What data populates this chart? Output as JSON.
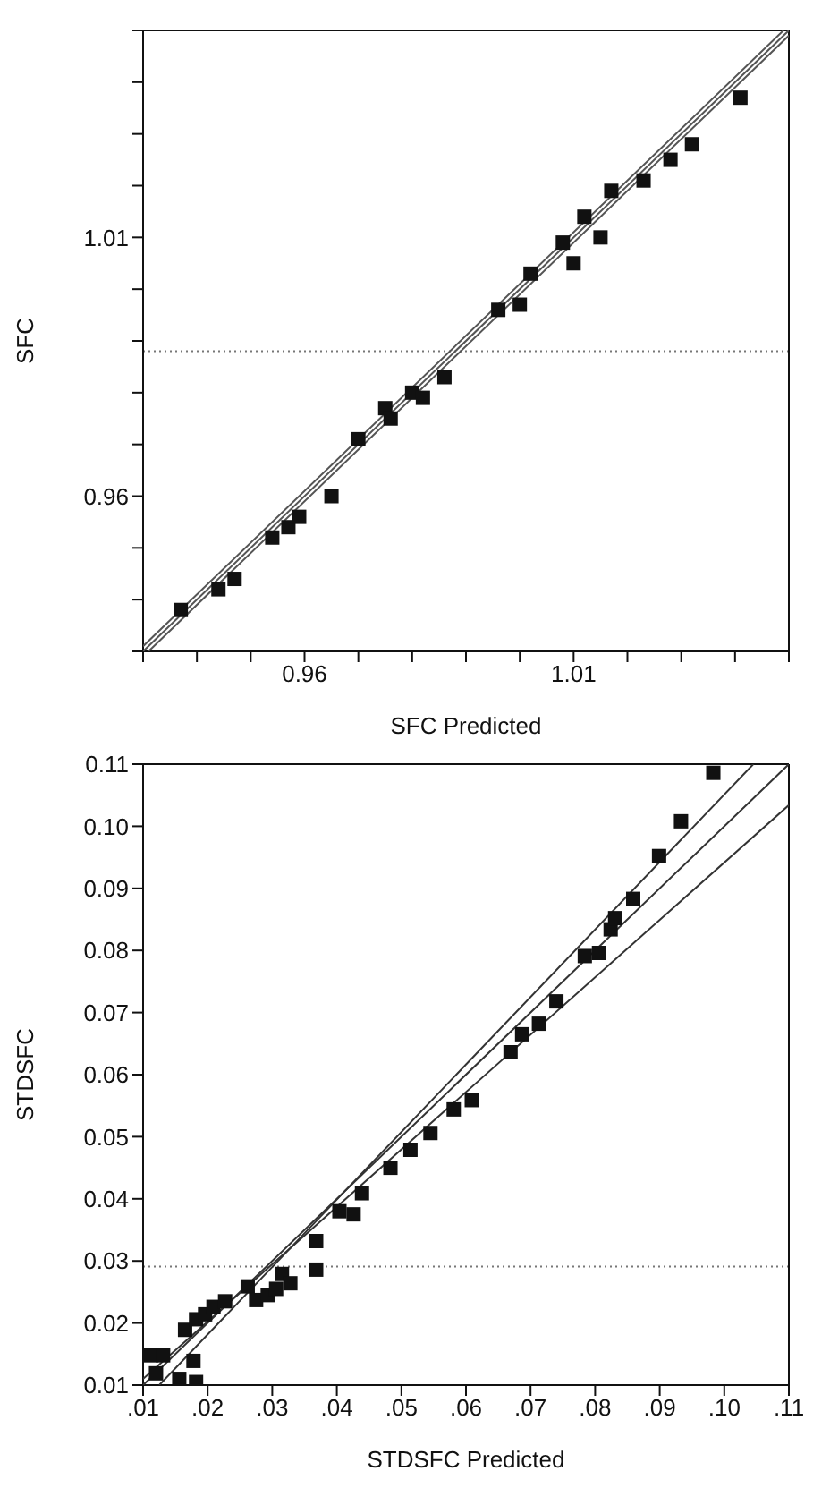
{
  "chart_data": [
    {
      "type": "scatter",
      "xlabel": "SFC  Predicted",
      "ylabel": "SFC",
      "xlim": [
        0.93,
        1.05
      ],
      "ylim": [
        0.93,
        1.05
      ],
      "xticks": [
        {
          "value": 0.93,
          "label": null
        },
        {
          "value": 0.94,
          "label": null
        },
        {
          "value": 0.95,
          "label": null
        },
        {
          "value": 0.96,
          "label": "0.96"
        },
        {
          "value": 0.97,
          "label": null
        },
        {
          "value": 0.98,
          "label": null
        },
        {
          "value": 0.99,
          "label": null
        },
        {
          "value": 1.0,
          "label": null
        },
        {
          "value": 1.01,
          "label": "1.01"
        },
        {
          "value": 1.02,
          "label": null
        },
        {
          "value": 1.03,
          "label": null
        },
        {
          "value": 1.04,
          "label": null
        },
        {
          "value": 1.05,
          "label": null
        }
      ],
      "yticks": [
        {
          "value": 0.93,
          "label": null
        },
        {
          "value": 0.94,
          "label": null
        },
        {
          "value": 0.95,
          "label": null
        },
        {
          "value": 0.96,
          "label": "0.96"
        },
        {
          "value": 0.97,
          "label": null
        },
        {
          "value": 0.98,
          "label": null
        },
        {
          "value": 0.99,
          "label": null
        },
        {
          "value": 1.0,
          "label": null
        },
        {
          "value": 1.01,
          "label": "1.01"
        },
        {
          "value": 1.02,
          "label": null
        },
        {
          "value": 1.03,
          "label": null
        },
        {
          "value": 1.04,
          "label": null
        },
        {
          "value": 1.05,
          "label": null
        }
      ],
      "ref_lines": [
        {
          "axis": "y",
          "value": 0.988,
          "color": "#777777",
          "line_style": "dotted"
        }
      ],
      "series": [
        {
          "marker": "square",
          "color": "#111111",
          "x": [
            0.937,
            0.944,
            0.947,
            0.954,
            0.957,
            0.959,
            0.965,
            0.97,
            0.975,
            0.976,
            0.98,
            0.982,
            0.986,
            0.996,
            1.0,
            1.002,
            1.008,
            1.01,
            1.012,
            1.015,
            1.017,
            1.023,
            1.028,
            1.032,
            1.041
          ],
          "values": [
            0.938,
            0.942,
            0.944,
            0.952,
            0.954,
            0.956,
            0.96,
            0.971,
            0.977,
            0.975,
            0.98,
            0.979,
            0.983,
            0.996,
            0.997,
            1.003,
            1.009,
            1.005,
            1.014,
            1.01,
            1.019,
            1.021,
            1.025,
            1.028,
            1.037
          ]
        },
        {
          "type": "line",
          "marker": "none",
          "color": "#555555",
          "x": [
            0.93,
            1.049
          ],
          "values": [
            0.931,
            1.05
          ]
        },
        {
          "type": "line",
          "marker": "none",
          "color": "#555555",
          "x": [
            0.93,
            1.05
          ],
          "values": [
            0.93,
            1.05
          ]
        },
        {
          "type": "line",
          "marker": "none",
          "color": "#555555",
          "x": [
            0.931,
            1.05
          ],
          "values": [
            0.93,
            1.049
          ]
        }
      ]
    },
    {
      "type": "scatter",
      "xlabel": "STDSFC  Predicted",
      "ylabel": "STDSFC",
      "xlim": [
        0.01,
        0.11
      ],
      "ylim": [
        0.01,
        0.11
      ],
      "xticks": [
        {
          "value": 0.01,
          "label": ".01"
        },
        {
          "value": 0.02,
          "label": ".02"
        },
        {
          "value": 0.03,
          "label": ".03"
        },
        {
          "value": 0.04,
          "label": ".04"
        },
        {
          "value": 0.05,
          "label": ".05"
        },
        {
          "value": 0.06,
          "label": ".06"
        },
        {
          "value": 0.07,
          "label": ".07"
        },
        {
          "value": 0.08,
          "label": ".08"
        },
        {
          "value": 0.09,
          "label": ".09"
        },
        {
          "value": 0.1,
          "label": ".10"
        },
        {
          "value": 0.11,
          "label": ".11"
        }
      ],
      "yticks": [
        {
          "value": 0.01,
          "label": "0.01"
        },
        {
          "value": 0.02,
          "label": "0.02"
        },
        {
          "value": 0.03,
          "label": "0.03"
        },
        {
          "value": 0.04,
          "label": "0.04"
        },
        {
          "value": 0.05,
          "label": "0.05"
        },
        {
          "value": 0.06,
          "label": "0.06"
        },
        {
          "value": 0.07,
          "label": "0.07"
        },
        {
          "value": 0.08,
          "label": "0.08"
        },
        {
          "value": 0.09,
          "label": "0.09"
        },
        {
          "value": 0.1,
          "label": "0.10"
        },
        {
          "value": 0.11,
          "label": "0.11"
        }
      ],
      "ref_lines": [
        {
          "axis": "y",
          "value": 0.0291,
          "color": "#777777",
          "line_style": "dotted"
        }
      ],
      "series": [
        {
          "marker": "square",
          "color": "#111111",
          "x": [
            0.0112,
            0.012,
            0.0131,
            0.0156,
            0.0165,
            0.0178,
            0.0182,
            0.0182,
            0.0196,
            0.0209,
            0.0227,
            0.0262,
            0.0275,
            0.0293,
            0.0306,
            0.0315,
            0.0328,
            0.0368,
            0.0368,
            0.0404,
            0.0426,
            0.0439,
            0.0483,
            0.0514,
            0.0545,
            0.0581,
            0.0609,
            0.0669,
            0.0687,
            0.0713,
            0.074,
            0.0784,
            0.0806,
            0.0824,
            0.0831,
            0.0859,
            0.0899,
            0.0933,
            0.0983
          ],
          "values": [
            0.0148,
            0.0119,
            0.0148,
            0.011,
            0.0189,
            0.0139,
            0.0206,
            0.0105,
            0.0214,
            0.0226,
            0.0235,
            0.0259,
            0.0237,
            0.0245,
            0.0255,
            0.0279,
            0.0264,
            0.0332,
            0.0286,
            0.038,
            0.0375,
            0.0409,
            0.045,
            0.0479,
            0.0506,
            0.0544,
            0.0559,
            0.0636,
            0.0665,
            0.0682,
            0.0718,
            0.0791,
            0.0796,
            0.0834,
            0.0852,
            0.0883,
            0.0952,
            0.1008,
            0.1086
          ]
        },
        {
          "type": "line",
          "marker": "none",
          "color": "#333333",
          "x": [
            0.0125,
            0.1045
          ],
          "values": [
            0.01,
            0.11
          ]
        },
        {
          "type": "line",
          "marker": "none",
          "color": "#333333",
          "x": [
            0.01,
            0.11
          ],
          "values": [
            0.01,
            0.11
          ]
        },
        {
          "type": "line",
          "marker": "none",
          "color": "#333333",
          "x": [
            0.01,
            0.11
          ],
          "values": [
            0.011,
            0.1034
          ]
        }
      ]
    }
  ]
}
